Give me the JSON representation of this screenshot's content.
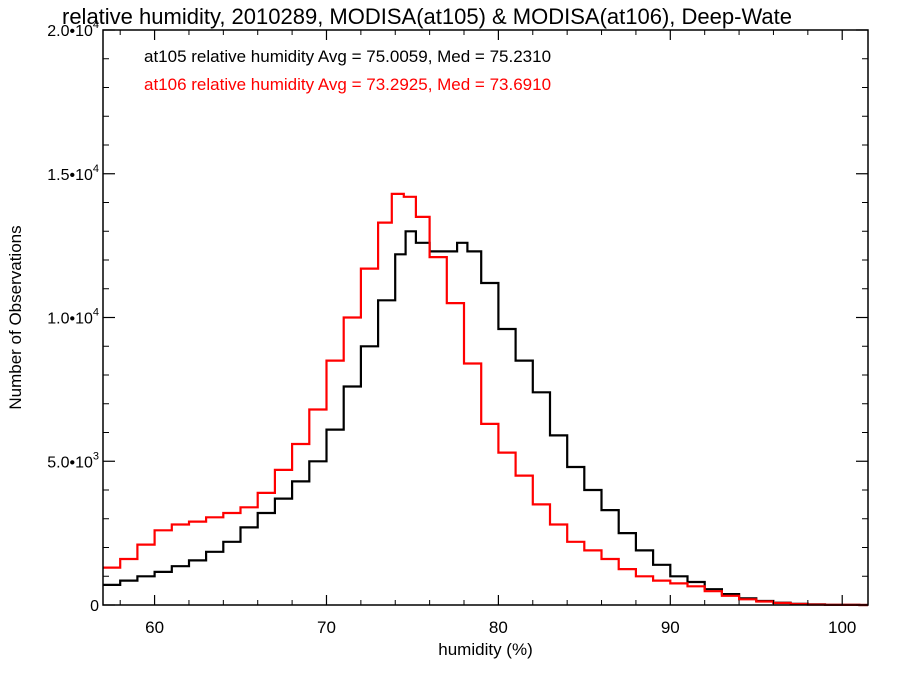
{
  "chart_data": {
    "type": "line",
    "title": "relative humidity, 2010289, MODISA(at105) & MODISA(at106), Deep-Wate",
    "xlabel": "humidity (%)",
    "ylabel": "Number of Observations",
    "xlim": [
      57,
      101.5
    ],
    "ylim": [
      0,
      20000
    ],
    "x_ticks": [
      60,
      70,
      80,
      90,
      100
    ],
    "x_tick_labels": [
      "60",
      "70",
      "80",
      "90",
      "100"
    ],
    "y_ticks": [
      0,
      5000,
      10000,
      15000,
      20000
    ],
    "y_tick_labels": [
      {
        "mantissa": "0",
        "exp": ""
      },
      {
        "mantissa": "5.0•10",
        "exp": "3"
      },
      {
        "mantissa": "1.0•10",
        "exp": "4"
      },
      {
        "mantissa": "1.5•10",
        "exp": "4"
      },
      {
        "mantissa": "2.0•10",
        "exp": "4"
      }
    ],
    "grid": false,
    "step": true,
    "annotations": [
      {
        "text": "at105 relative humidity Avg = 75.0059, Med = 75.2310",
        "color": "#000000"
      },
      {
        "text": "at106 relative humidity Avg = 73.2925, Med = 73.6910",
        "color": "#ff0000"
      }
    ],
    "series": [
      {
        "color": "#000000",
        "x": [
          57,
          58,
          59,
          60,
          61,
          62,
          63,
          64,
          65,
          66,
          67,
          68,
          69,
          70,
          71,
          72,
          73,
          74,
          74.6,
          75.2,
          76,
          77,
          77.6,
          78.2,
          79,
          80,
          81,
          82,
          83,
          84,
          85,
          86,
          87,
          88,
          89,
          90,
          91,
          92,
          93,
          94,
          95,
          96,
          97,
          98,
          99,
          100,
          101,
          101.5
        ],
        "y": [
          700,
          850,
          1000,
          1150,
          1350,
          1550,
          1850,
          2200,
          2700,
          3200,
          3700,
          4300,
          5000,
          6100,
          7600,
          9000,
          10600,
          12200,
          13000,
          12600,
          12300,
          12300,
          12600,
          12300,
          11200,
          9600,
          8500,
          7400,
          5900,
          4800,
          4000,
          3300,
          2500,
          1900,
          1400,
          1000,
          800,
          550,
          380,
          230,
          140,
          80,
          40,
          20,
          8,
          4,
          0,
          0
        ]
      },
      {
        "color": "#ff0000",
        "x": [
          57,
          58,
          59,
          60,
          61,
          62,
          63,
          64,
          65,
          66,
          67,
          68,
          69,
          70,
          71,
          72,
          73,
          73.8,
          74.5,
          75.2,
          76,
          77,
          78,
          79,
          80,
          81,
          82,
          83,
          84,
          85,
          86,
          87,
          88,
          89,
          90,
          91,
          92,
          93,
          94,
          95,
          96,
          97,
          98,
          99,
          100,
          101,
          101.5
        ],
        "y": [
          1300,
          1600,
          2100,
          2600,
          2800,
          2900,
          3050,
          3200,
          3400,
          3900,
          4700,
          5600,
          6800,
          8500,
          10000,
          11700,
          13300,
          14300,
          14200,
          13500,
          12100,
          10500,
          8400,
          6300,
          5300,
          4500,
          3500,
          2800,
          2200,
          1900,
          1600,
          1250,
          1000,
          850,
          750,
          650,
          480,
          320,
          200,
          120,
          70,
          35,
          15,
          6,
          3,
          0,
          0
        ]
      }
    ]
  }
}
